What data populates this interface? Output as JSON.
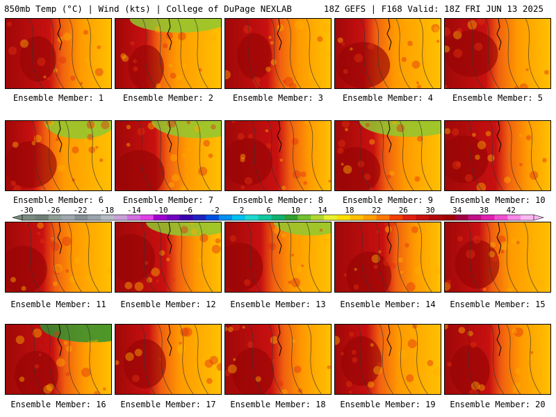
{
  "header": {
    "left": "850mb Temp (°C) | Wind (kts) | College of DuPage NEXLAB",
    "right": "18Z GEFS | F168 Valid: 18Z FRI JUN 13 2025"
  },
  "caption_prefix": "Ensemble Member: ",
  "members": [
    "1",
    "2",
    "3",
    "4",
    "5",
    "6",
    "7",
    "8",
    "9",
    "10",
    "11",
    "12",
    "13",
    "14",
    "15",
    "16",
    "17",
    "18",
    "19",
    "20"
  ],
  "colorbar": {
    "labels": [
      "-30",
      "-26",
      "-22",
      "-18",
      "-14",
      "-10",
      "-6",
      "-2",
      "2",
      "6",
      "10",
      "14",
      "18",
      "22",
      "26",
      "30",
      "34",
      "38",
      "42"
    ],
    "colors": [
      "#7a8a80",
      "#6e7e74",
      "#8e9e94",
      "#a0a8ae",
      "#868e96",
      "#9aa2aa",
      "#b4bcc4",
      "#c8a0d8",
      "#d070e0",
      "#e040e8",
      "#a000d0",
      "#7000c0",
      "#3a00b0",
      "#2020c0",
      "#0050e0",
      "#0090f0",
      "#00c0f0",
      "#20d8d0",
      "#10c8a0",
      "#10b070",
      "#30a030",
      "#70c030",
      "#b0d830",
      "#e8f030",
      "#ffe000",
      "#ffc000",
      "#ffa000",
      "#ff7800",
      "#f04000",
      "#e02010",
      "#c81010",
      "#b00808",
      "#a00000",
      "#a00040",
      "#c0108a",
      "#e020b0",
      "#f050d0",
      "#f888e8",
      "#fbb8f0"
    ]
  }
}
